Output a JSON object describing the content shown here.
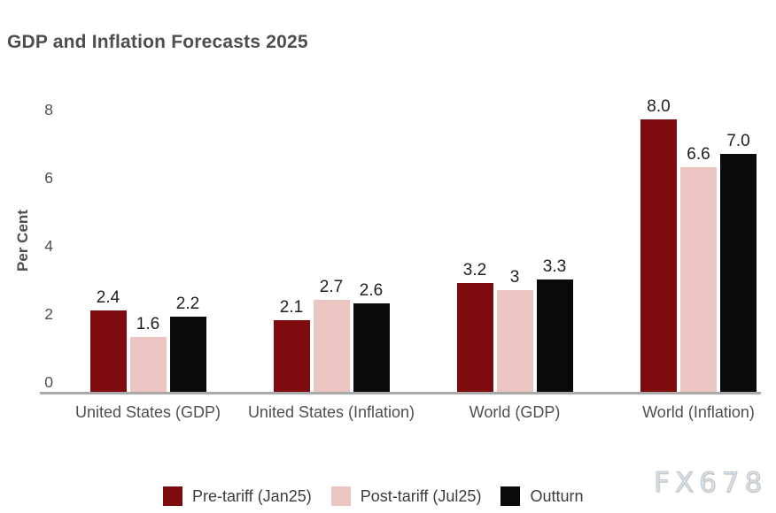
{
  "watermark": "FX678",
  "chart_data": {
    "type": "bar",
    "title": "GDP and Inflation Forecasts 2025",
    "xlabel": "",
    "ylabel": "Per Cent",
    "ylim": [
      0,
      8
    ],
    "yticks": [
      "0",
      "2",
      "4",
      "6",
      "8"
    ],
    "grid": false,
    "legend_position": "bottom-center",
    "categories": [
      "United States (GDP)",
      "United States (Inflation)",
      "World (GDP)",
      "World (Inflation)"
    ],
    "series": [
      {
        "name": "Pre-tariff (Jan25)",
        "color": "#7D0B0D",
        "values": [
          2.4,
          2.1,
          3.2,
          8.0
        ],
        "value_labels": [
          "2.4",
          "2.1",
          "3.2",
          "8.0"
        ]
      },
      {
        "name": "Post-tariff (Jul25)",
        "color": "#EBC5C1",
        "values": [
          1.6,
          2.7,
          3.0,
          6.6
        ],
        "value_labels": [
          "1.6",
          "2.7",
          "3",
          "6.6"
        ]
      },
      {
        "name": "Outturn",
        "color": "#0A0A0A",
        "values": [
          2.2,
          2.6,
          3.3,
          7.0
        ],
        "value_labels": [
          "2.2",
          "2.6",
          "3.3",
          "7.0"
        ]
      }
    ]
  }
}
